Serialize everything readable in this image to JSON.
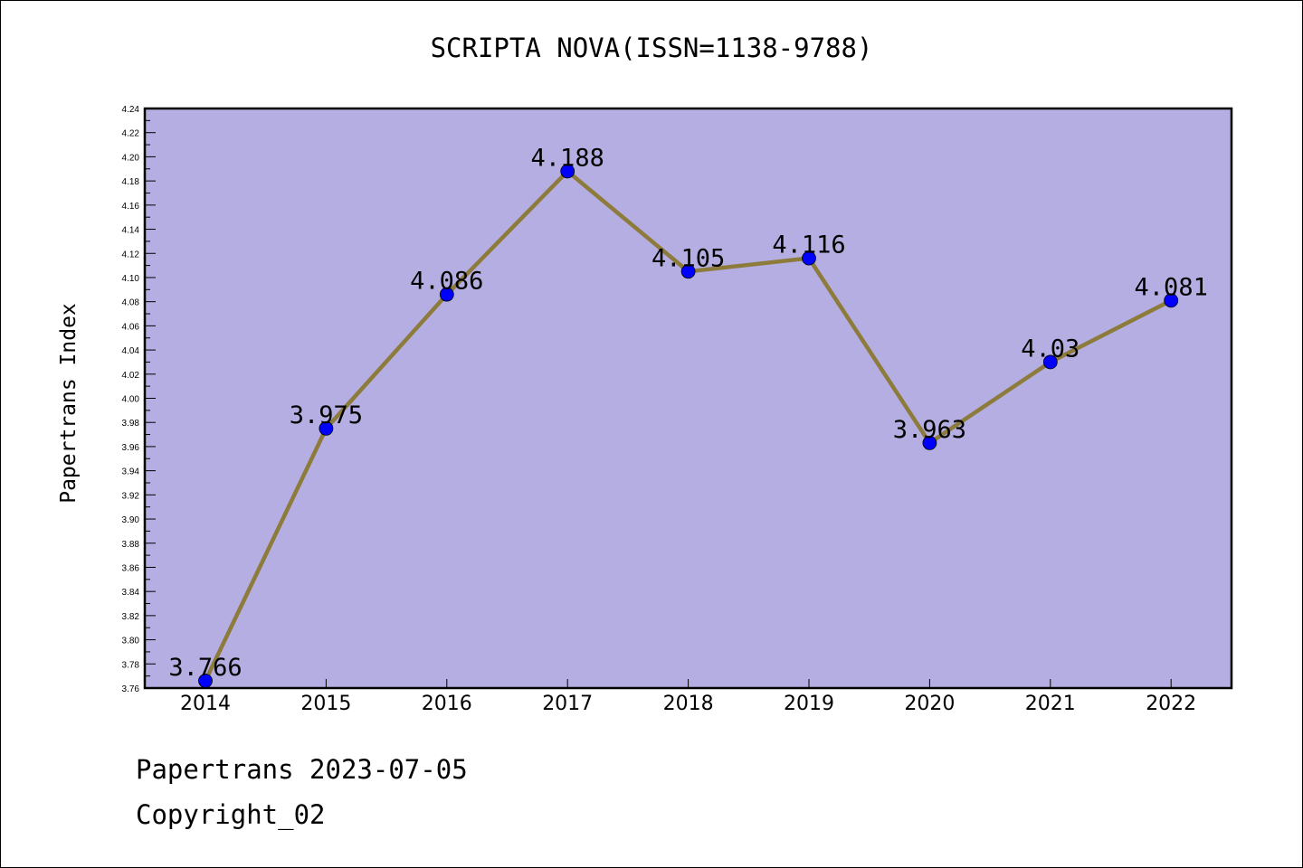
{
  "title": "SCRIPTA NOVA(ISSN=1138-9788)",
  "footer": {
    "line1": "Papertrans 2023-07-05",
    "line2": "Copyright_02"
  },
  "colors": {
    "plot_background": "#b5aee2",
    "line": "#8c7b3a",
    "marker": "#0000ff"
  },
  "chart_data": {
    "type": "line",
    "title": "SCRIPTA NOVA(ISSN=1138-9788)",
    "xlabel": "",
    "ylabel": "Papertrans Index",
    "categories": [
      "2014",
      "2015",
      "2016",
      "2017",
      "2018",
      "2019",
      "2020",
      "2021",
      "2022"
    ],
    "series": [
      {
        "values": [
          3.766,
          3.975,
          4.086,
          4.188,
          4.105,
          4.116,
          3.963,
          4.03,
          4.081
        ],
        "labels": [
          "3.766",
          "3.975",
          "4.086",
          "4.188",
          "4.105",
          "4.116",
          "3.963",
          "4.03",
          "4.081"
        ]
      }
    ],
    "ylim": [
      3.76,
      4.24
    ],
    "yticks": [
      "3.76",
      "3.78",
      "3.80",
      "3.82",
      "3.84",
      "3.86",
      "3.88",
      "3.90",
      "3.92",
      "3.94",
      "3.96",
      "3.98",
      "4.00",
      "4.02",
      "4.04",
      "4.06",
      "4.08",
      "4.10",
      "4.12",
      "4.14",
      "4.16",
      "4.18",
      "4.20",
      "4.22",
      "4.24"
    ],
    "grid": false,
    "legend": "none"
  }
}
